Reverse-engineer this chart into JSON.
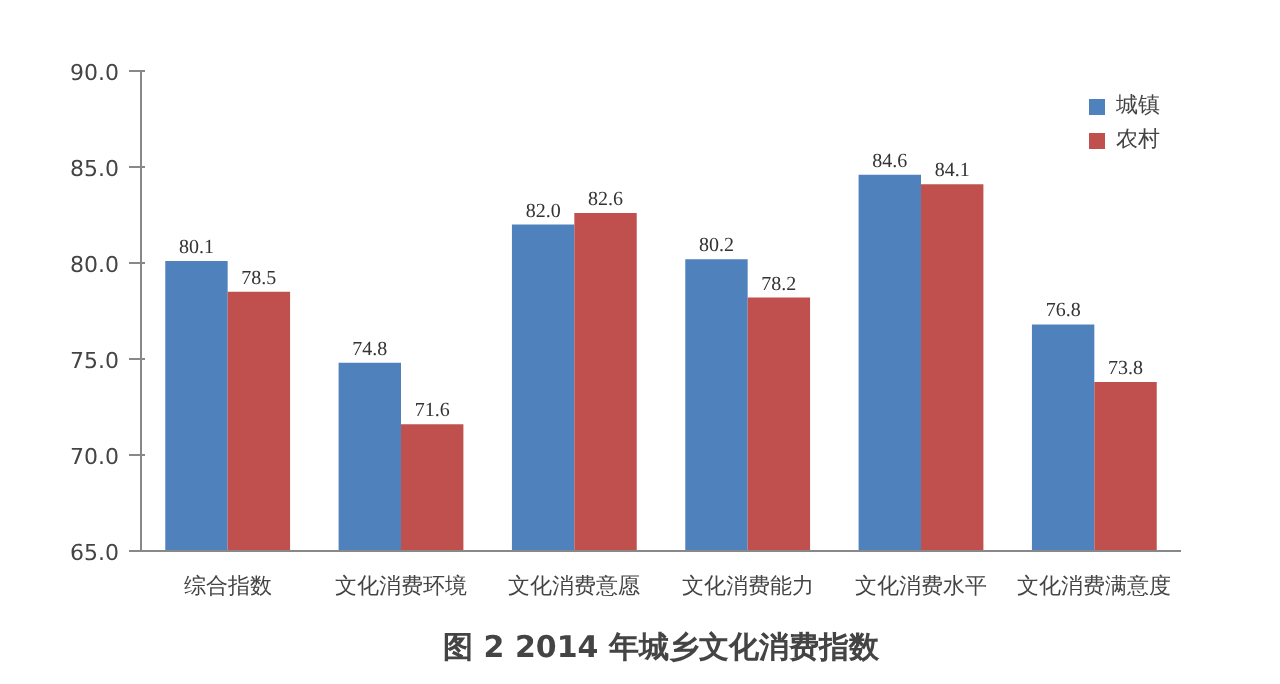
{
  "chart_data": {
    "type": "bar",
    "title": "图 2 2014 年城乡文化消费指数",
    "categories": [
      "综合指数",
      "文化消费环境",
      "文化消费意愿",
      "文化消费能力",
      "文化消费水平",
      "文化消费满意度"
    ],
    "series": [
      {
        "name": "城镇",
        "color": "#4f81bd",
        "values": [
          80.1,
          74.8,
          82.0,
          80.2,
          84.6,
          76.8
        ],
        "value_labels": [
          "80.1",
          "74.8",
          "82.0",
          "80.2",
          "84.6",
          "76.8"
        ]
      },
      {
        "name": "农村",
        "color": "#c0504d",
        "values": [
          78.5,
          71.6,
          82.6,
          78.2,
          84.1,
          73.8
        ],
        "value_labels": [
          "78.5",
          "71.6",
          "82.6",
          "78.2",
          "84.1",
          "73.8"
        ]
      }
    ],
    "ylim": [
      65,
      90
    ],
    "yticks": [
      {
        "value": 65,
        "label": "65.0"
      },
      {
        "value": 70,
        "label": "70.0"
      },
      {
        "value": 75,
        "label": "75.0"
      },
      {
        "value": 80,
        "label": "80.0"
      },
      {
        "value": 85,
        "label": "85.0"
      },
      {
        "value": 90,
        "label": "90.0"
      }
    ],
    "grid": false,
    "legend": "top right"
  }
}
